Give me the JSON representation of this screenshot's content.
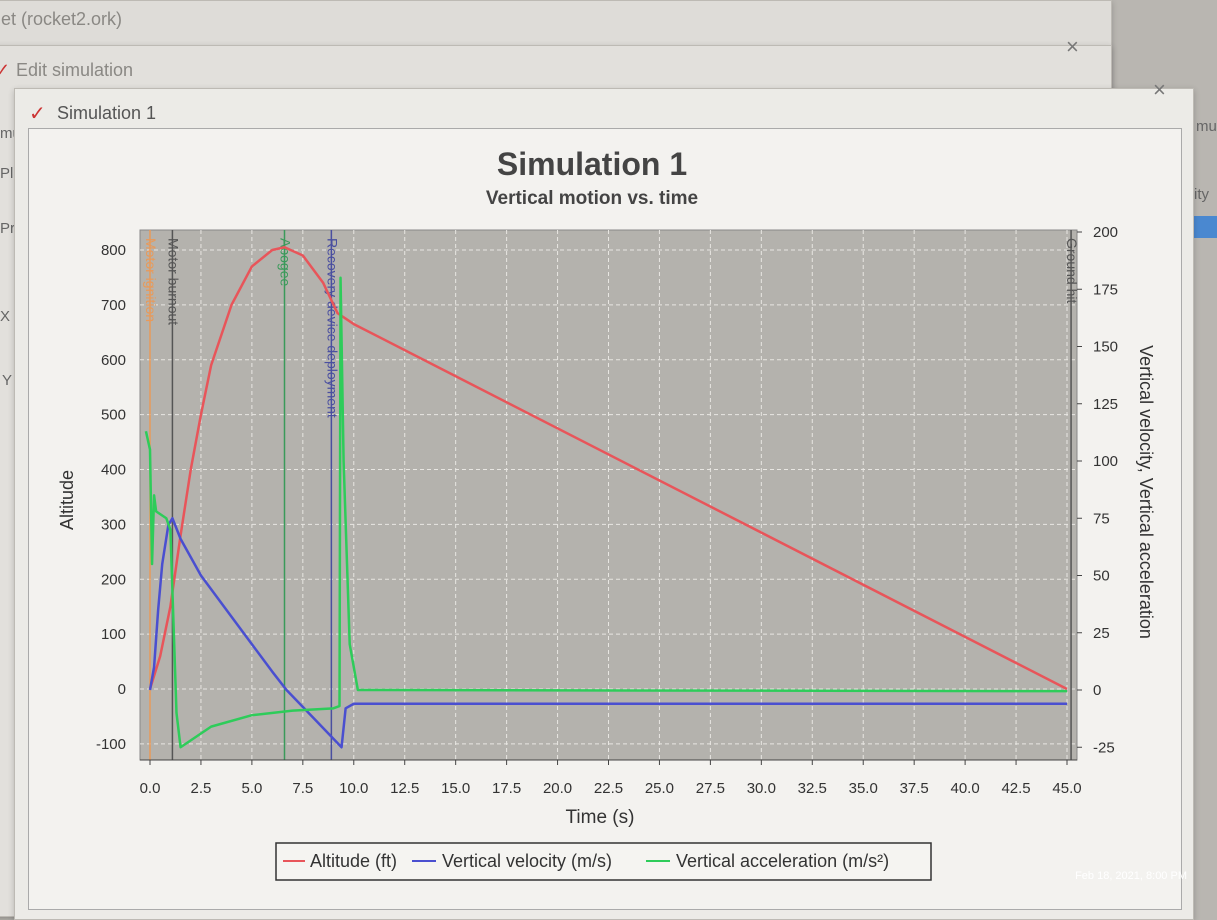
{
  "windows": {
    "main_title": "et (rocket2.ork)",
    "edit_title": "Edit simulation",
    "plot_title": "Simulation 1",
    "close_icon": "close-icon",
    "rocket_icon": "rocket-icon",
    "side_labels": [
      "mu",
      "Pl",
      "Pr",
      "X",
      "Y",
      "mu",
      "ity"
    ]
  },
  "timestamp": "Feb 18, 2021, 8:00 PM",
  "chart_data": {
    "type": "line",
    "title": "Simulation 1",
    "subtitle": "Vertical motion vs. time",
    "xlabel": "Time (s)",
    "ylabel_left": "Altitude",
    "ylabel_right": "Vertical velocity, Vertical acceleration",
    "xlim": [
      -0.5,
      45.5
    ],
    "ylim_left": [
      -130,
      835
    ],
    "ylim_right": [
      -27,
      201
    ],
    "x_ticks": [
      "0.0",
      "2.5",
      "5.0",
      "7.5",
      "10.0",
      "12.5",
      "15.0",
      "17.5",
      "20.0",
      "22.5",
      "25.0",
      "27.5",
      "30.0",
      "32.5",
      "35.0",
      "37.5",
      "40.0",
      "42.5",
      "45.0"
    ],
    "y_left_ticks": [
      "-100",
      "0",
      "100",
      "200",
      "300",
      "400",
      "500",
      "600",
      "700",
      "800"
    ],
    "y_right_ticks": [
      "-25",
      "0",
      "25",
      "50",
      "75",
      "100",
      "125",
      "150",
      "175",
      "200"
    ],
    "grid": true,
    "legend": "bottom",
    "series": [
      {
        "name": "Altitude (ft)",
        "axis": "left",
        "color": "#e8555a",
        "x": [
          0,
          0.5,
          1,
          1.5,
          2,
          2.5,
          3,
          4,
          5,
          6,
          6.6,
          7.5,
          8.5,
          9.2,
          10,
          45
        ],
        "y": [
          0,
          60,
          150,
          280,
          400,
          500,
          590,
          700,
          770,
          800,
          805,
          790,
          740,
          685,
          665,
          0
        ]
      },
      {
        "name": "Vertical velocity (m/s)",
        "axis": "right",
        "color": "#4a4fd0",
        "x": [
          0,
          0.2,
          0.4,
          0.6,
          0.9,
          1.1,
          1.5,
          2.5,
          4,
          5,
          6,
          6.7,
          8,
          9.4,
          9.6,
          10,
          45
        ],
        "y": [
          0,
          10,
          35,
          55,
          72,
          75,
          66,
          50,
          32,
          20,
          8,
          0,
          -12,
          -25,
          -8,
          -6,
          -6
        ]
      },
      {
        "name": "Vertical acceleration (m/s²)",
        "axis": "right",
        "color": "#2ecc5a",
        "x": [
          -0.2,
          0,
          0.1,
          0.2,
          0.3,
          0.8,
          1.0,
          1.3,
          1.5,
          2,
          3,
          5,
          7,
          9,
          9.3,
          9.35,
          9.5,
          9.8,
          10.2,
          45
        ],
        "y": [
          113,
          105,
          55,
          85,
          78,
          75,
          70,
          -10,
          -25,
          -22,
          -16,
          -11,
          -9,
          -8,
          -7,
          180,
          100,
          20,
          0,
          -0.5
        ]
      }
    ],
    "events": [
      {
        "label": "Motor ignition",
        "t": 0,
        "color": "#e89a5a"
      },
      {
        "label": "Motor burnout",
        "t": 1.1,
        "color": "#555555"
      },
      {
        "label": "Apogee",
        "t": 6.6,
        "color": "#3a9a5a"
      },
      {
        "label": "Recovery device deployment",
        "t": 8.9,
        "color": "#4a4fa0"
      },
      {
        "label": "Ground hit",
        "t": 45.2,
        "color": "#555555"
      }
    ]
  }
}
